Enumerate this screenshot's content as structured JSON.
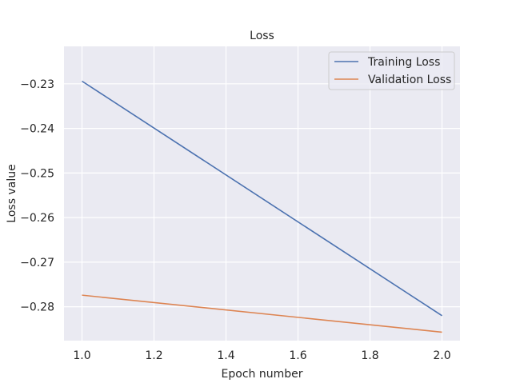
{
  "chart_data": {
    "type": "line",
    "title": "Loss",
    "xlabel": "Epoch number",
    "ylabel": "Loss value",
    "xlim": [
      0.95,
      2.05
    ],
    "ylim": [
      -0.2876,
      -0.2216
    ],
    "xticks": [
      1.0,
      1.2,
      1.4,
      1.6,
      1.8,
      2.0
    ],
    "xtick_labels": [
      "1.0",
      "1.2",
      "1.4",
      "1.6",
      "1.8",
      "2.0"
    ],
    "yticks": [
      -0.23,
      -0.24,
      -0.25,
      -0.26,
      -0.27,
      -0.28
    ],
    "ytick_labels": [
      "−0.23",
      "−0.24",
      "−0.25",
      "−0.26",
      "−0.27",
      "−0.28"
    ],
    "grid": true,
    "legend_position": "upper right",
    "series": [
      {
        "name": "Training Loss",
        "color": "#4c72b0",
        "x": [
          1.0,
          2.0
        ],
        "y": [
          -0.2294,
          -0.282
        ]
      },
      {
        "name": "Validation Loss",
        "color": "#dd8452",
        "x": [
          1.0,
          2.0
        ],
        "y": [
          -0.2774,
          -0.2857
        ]
      }
    ]
  }
}
